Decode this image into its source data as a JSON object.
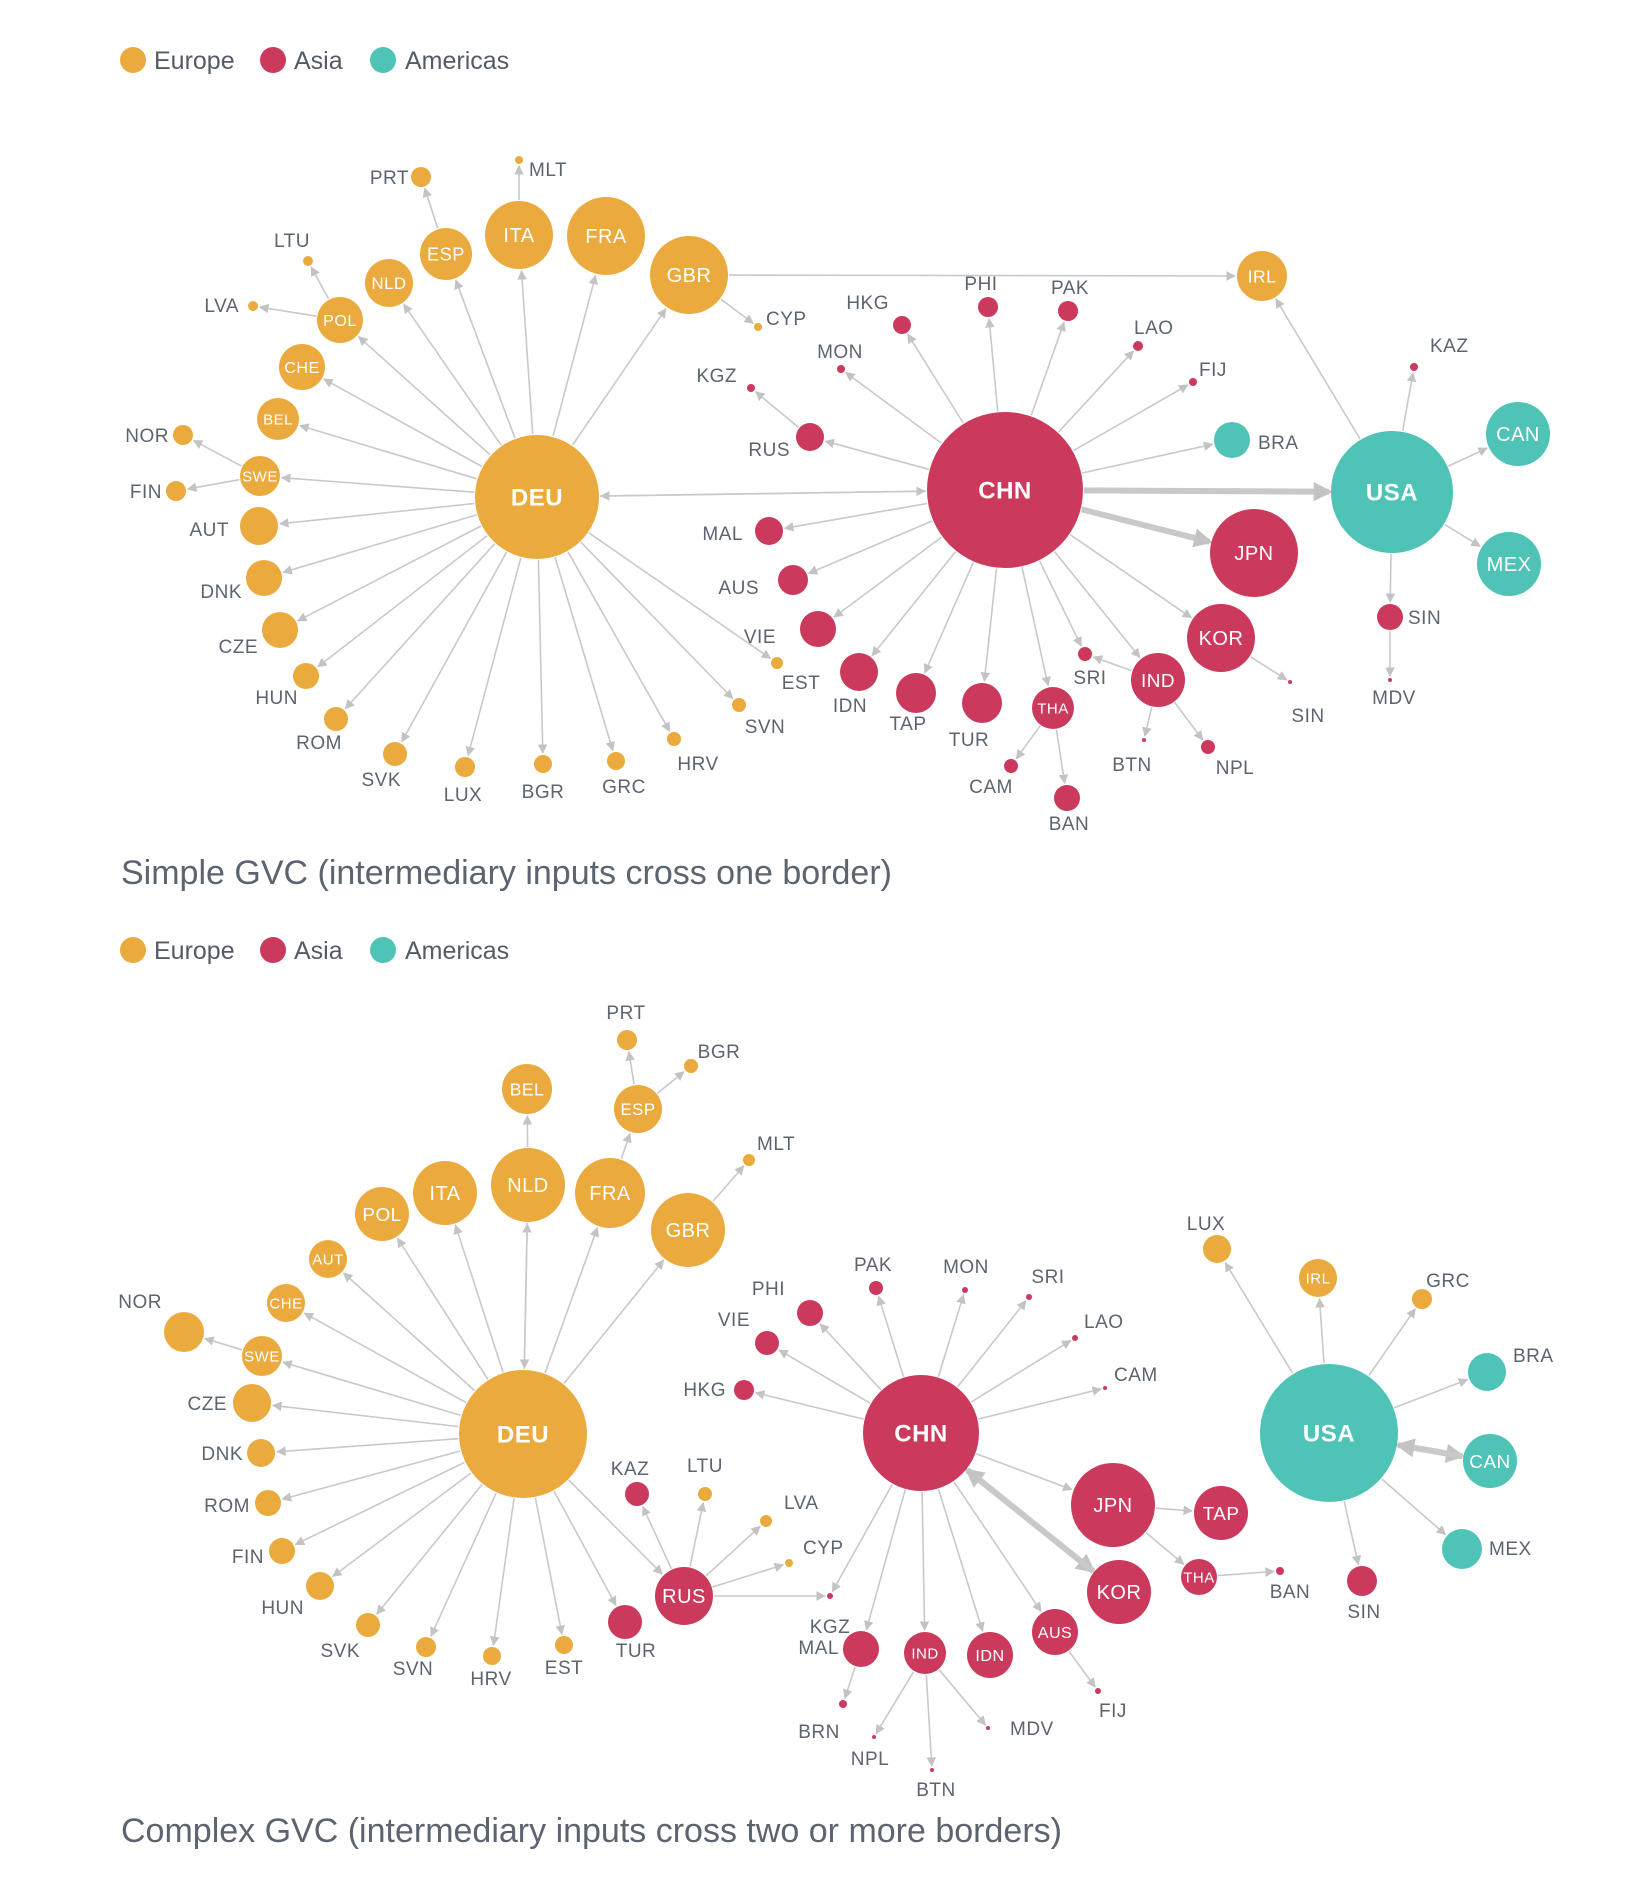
{
  "legend": [
    {
      "key": "europe",
      "label": "Europe",
      "color": "#EBAA3E"
    },
    {
      "key": "asia",
      "label": "Asia",
      "color": "#CB3A5C"
    },
    {
      "key": "americas",
      "label": "Americas",
      "color": "#4EC3B6"
    }
  ],
  "diagrams": [
    {
      "id": "simple",
      "caption": "Simple GVC (intermediary inputs cross one border)",
      "nodes": [
        {
          "id": "DEU",
          "region": "europe",
          "label": "DEU",
          "hub": true
        },
        {
          "id": "CHN",
          "region": "asia",
          "label": "CHN",
          "hub": true
        },
        {
          "id": "USA",
          "region": "americas",
          "label": "USA",
          "hub": true
        },
        {
          "id": "PRT",
          "region": "europe",
          "label": "PRT"
        },
        {
          "id": "MLT",
          "region": "europe",
          "label": "MLT"
        },
        {
          "id": "ITA",
          "region": "europe",
          "label": "ITA"
        },
        {
          "id": "FRA",
          "region": "europe",
          "label": "FRA"
        },
        {
          "id": "GBR",
          "region": "europe",
          "label": "GBR"
        },
        {
          "id": "ESP",
          "region": "europe",
          "label": "ESP"
        },
        {
          "id": "NLD",
          "region": "europe",
          "label": "NLD"
        },
        {
          "id": "LTU",
          "region": "europe",
          "label": "LTU"
        },
        {
          "id": "LVA",
          "region": "europe",
          "label": "LVA"
        },
        {
          "id": "POL",
          "region": "europe",
          "label": "POL"
        },
        {
          "id": "CHE",
          "region": "europe",
          "label": "CHE"
        },
        {
          "id": "BEL",
          "region": "europe",
          "label": "BEL"
        },
        {
          "id": "NOR",
          "region": "europe",
          "label": "NOR"
        },
        {
          "id": "SWE",
          "region": "europe",
          "label": "SWE"
        },
        {
          "id": "FIN",
          "region": "europe",
          "label": "FIN"
        },
        {
          "id": "AUT",
          "region": "europe",
          "label": "AUT"
        },
        {
          "id": "DNK",
          "region": "europe",
          "label": "DNK"
        },
        {
          "id": "CZE",
          "region": "europe",
          "label": "CZE"
        },
        {
          "id": "HUN",
          "region": "europe",
          "label": "HUN"
        },
        {
          "id": "ROM",
          "region": "europe",
          "label": "ROM"
        },
        {
          "id": "SVK",
          "region": "europe",
          "label": "SVK"
        },
        {
          "id": "LUX",
          "region": "europe",
          "label": "LUX"
        },
        {
          "id": "BGR",
          "region": "europe",
          "label": "BGR"
        },
        {
          "id": "GRC",
          "region": "europe",
          "label": "GRC"
        },
        {
          "id": "HRV",
          "region": "europe",
          "label": "HRV"
        },
        {
          "id": "SVN",
          "region": "europe",
          "label": "SVN"
        },
        {
          "id": "EST",
          "region": "europe",
          "label": "EST"
        },
        {
          "id": "CYP",
          "region": "europe",
          "label": "CYP"
        },
        {
          "id": "IRL",
          "region": "europe",
          "label": "IRL"
        },
        {
          "id": "HKG",
          "region": "asia",
          "label": "HKG"
        },
        {
          "id": "PHI",
          "region": "asia",
          "label": "PHI"
        },
        {
          "id": "PAK",
          "region": "asia",
          "label": "PAK"
        },
        {
          "id": "LAO",
          "region": "asia",
          "label": "LAO"
        },
        {
          "id": "FIJ",
          "region": "asia",
          "label": "FIJ"
        },
        {
          "id": "BRA",
          "region": "americas",
          "label": "BRA"
        },
        {
          "id": "MON",
          "region": "asia",
          "label": "MON"
        },
        {
          "id": "KGZ",
          "region": "asia",
          "label": "KGZ"
        },
        {
          "id": "RUS",
          "region": "asia",
          "label": "RUS"
        },
        {
          "id": "MAL",
          "region": "asia",
          "label": "MAL"
        },
        {
          "id": "AUS",
          "region": "asia",
          "label": "AUS"
        },
        {
          "id": "VIE",
          "region": "asia",
          "label": "VIE"
        },
        {
          "id": "IDN",
          "region": "asia",
          "label": "IDN"
        },
        {
          "id": "TAP",
          "region": "asia",
          "label": "TAP"
        },
        {
          "id": "TUR",
          "region": "asia",
          "label": "TUR"
        },
        {
          "id": "THA",
          "region": "asia",
          "label": "THA"
        },
        {
          "id": "CAM",
          "region": "asia",
          "label": "CAM"
        },
        {
          "id": "BAN",
          "region": "asia",
          "label": "BAN"
        },
        {
          "id": "SRI",
          "region": "asia",
          "label": "SRI"
        },
        {
          "id": "IND",
          "region": "asia",
          "label": "IND"
        },
        {
          "id": "BTN",
          "region": "asia",
          "label": "BTN"
        },
        {
          "id": "NPL",
          "region": "asia",
          "label": "NPL"
        },
        {
          "id": "KOR",
          "region": "asia",
          "label": "KOR"
        },
        {
          "id": "SIN_A",
          "region": "asia",
          "label": "SIN"
        },
        {
          "id": "JPN",
          "region": "asia",
          "label": "JPN"
        },
        {
          "id": "KAZ",
          "region": "asia",
          "label": "KAZ"
        },
        {
          "id": "CAN",
          "region": "americas",
          "label": "CAN"
        },
        {
          "id": "MEX",
          "region": "americas",
          "label": "MEX"
        },
        {
          "id": "SIN",
          "region": "asia",
          "label": "SIN"
        },
        {
          "id": "MDV",
          "region": "asia",
          "label": "MDV"
        }
      ],
      "edges": [
        [
          "DEU",
          "ITA"
        ],
        [
          "DEU",
          "FRA"
        ],
        [
          "DEU",
          "GBR"
        ],
        [
          "DEU",
          "ESP"
        ],
        [
          "DEU",
          "NLD"
        ],
        [
          "DEU",
          "POL"
        ],
        [
          "DEU",
          "CHE"
        ],
        [
          "DEU",
          "BEL"
        ],
        [
          "DEU",
          "SWE"
        ],
        [
          "DEU",
          "AUT"
        ],
        [
          "DEU",
          "DNK"
        ],
        [
          "DEU",
          "CZE"
        ],
        [
          "DEU",
          "HUN"
        ],
        [
          "DEU",
          "ROM"
        ],
        [
          "DEU",
          "SVK"
        ],
        [
          "DEU",
          "LUX"
        ],
        [
          "DEU",
          "BGR"
        ],
        [
          "DEU",
          "GRC"
        ],
        [
          "DEU",
          "HRV"
        ],
        [
          "DEU",
          "SVN"
        ],
        [
          "DEU",
          "EST"
        ],
        [
          "ESP",
          "PRT"
        ],
        [
          "ITA",
          "MLT"
        ],
        [
          "POL",
          "LTU"
        ],
        [
          "POL",
          "LVA"
        ],
        [
          "SWE",
          "NOR"
        ],
        [
          "SWE",
          "FIN"
        ],
        [
          "GBR",
          "CYP"
        ],
        [
          "GBR",
          "IRL"
        ],
        [
          "CHN",
          "DEU"
        ],
        [
          "DEU",
          "CHN"
        ],
        [
          "CHN",
          "HKG"
        ],
        [
          "CHN",
          "PHI"
        ],
        [
          "CHN",
          "PAK"
        ],
        [
          "CHN",
          "LAO"
        ],
        [
          "CHN",
          "FIJ"
        ],
        [
          "CHN",
          "BRA"
        ],
        [
          "CHN",
          "MON"
        ],
        [
          "CHN",
          "RUS"
        ],
        [
          "RUS",
          "KGZ"
        ],
        [
          "CHN",
          "MAL"
        ],
        [
          "CHN",
          "AUS"
        ],
        [
          "CHN",
          "VIE"
        ],
        [
          "CHN",
          "IDN"
        ],
        [
          "CHN",
          "TAP"
        ],
        [
          "CHN",
          "TUR"
        ],
        [
          "CHN",
          "THA"
        ],
        [
          "THA",
          "CAM"
        ],
        [
          "THA",
          "BAN"
        ],
        [
          "CHN",
          "SRI"
        ],
        [
          "IND",
          "SRI"
        ],
        [
          "CHN",
          "IND"
        ],
        [
          "IND",
          "BTN"
        ],
        [
          "IND",
          "NPL"
        ],
        [
          "CHN",
          "KOR"
        ],
        [
          "KOR",
          "SIN_A"
        ],
        [
          "CHN",
          "JPN",
          "major"
        ],
        [
          "CHN",
          "USA",
          "major"
        ],
        [
          "USA",
          "IRL"
        ],
        [
          "USA",
          "KAZ"
        ],
        [
          "USA",
          "CAN"
        ],
        [
          "USA",
          "MEX"
        ],
        [
          "USA",
          "SIN"
        ],
        [
          "SIN",
          "MDV"
        ]
      ]
    },
    {
      "id": "complex",
      "caption": "Complex GVC (intermediary inputs cross two or more borders)",
      "nodes": [
        {
          "id": "DEU",
          "region": "europe",
          "label": "DEU",
          "hub": true
        },
        {
          "id": "CHN",
          "region": "asia",
          "label": "CHN",
          "hub": true
        },
        {
          "id": "USA",
          "region": "americas",
          "label": "USA",
          "hub": true
        },
        {
          "id": "PRT",
          "region": "europe",
          "label": "PRT"
        },
        {
          "id": "BGR",
          "region": "europe",
          "label": "BGR"
        },
        {
          "id": "ESP",
          "region": "europe",
          "label": "ESP"
        },
        {
          "id": "BEL",
          "region": "europe",
          "label": "BEL"
        },
        {
          "id": "MLT",
          "region": "europe",
          "label": "MLT"
        },
        {
          "id": "ITA",
          "region": "europe",
          "label": "ITA"
        },
        {
          "id": "NLD",
          "region": "europe",
          "label": "NLD"
        },
        {
          "id": "FRA",
          "region": "europe",
          "label": "FRA"
        },
        {
          "id": "GBR",
          "region": "europe",
          "label": "GBR"
        },
        {
          "id": "POL",
          "region": "europe",
          "label": "POL"
        },
        {
          "id": "AUT",
          "region": "europe",
          "label": "AUT"
        },
        {
          "id": "CHE",
          "region": "europe",
          "label": "CHE"
        },
        {
          "id": "NOR",
          "region": "europe",
          "label": "NOR"
        },
        {
          "id": "SWE",
          "region": "europe",
          "label": "SWE"
        },
        {
          "id": "CZE",
          "region": "europe",
          "label": "CZE"
        },
        {
          "id": "DNK",
          "region": "europe",
          "label": "DNK"
        },
        {
          "id": "ROM",
          "region": "europe",
          "label": "ROM"
        },
        {
          "id": "FIN",
          "region": "europe",
          "label": "FIN"
        },
        {
          "id": "HUN",
          "region": "europe",
          "label": "HUN"
        },
        {
          "id": "SVK",
          "region": "europe",
          "label": "SVK"
        },
        {
          "id": "SVN",
          "region": "europe",
          "label": "SVN"
        },
        {
          "id": "HRV",
          "region": "europe",
          "label": "HRV"
        },
        {
          "id": "EST",
          "region": "europe",
          "label": "EST"
        },
        {
          "id": "TUR",
          "region": "asia",
          "label": "TUR"
        },
        {
          "id": "KAZ",
          "region": "asia",
          "label": "KAZ"
        },
        {
          "id": "LTU",
          "region": "europe",
          "label": "LTU"
        },
        {
          "id": "LVA",
          "region": "europe",
          "label": "LVA"
        },
        {
          "id": "CYP",
          "region": "europe",
          "label": "CYP"
        },
        {
          "id": "RUS",
          "region": "asia",
          "label": "RUS"
        },
        {
          "id": "KGZ",
          "region": "asia",
          "label": "KGZ"
        },
        {
          "id": "PAK",
          "region": "asia",
          "label": "PAK"
        },
        {
          "id": "MON",
          "region": "asia",
          "label": "MON"
        },
        {
          "id": "PHI",
          "region": "asia",
          "label": "PHI"
        },
        {
          "id": "SRI",
          "region": "asia",
          "label": "SRI"
        },
        {
          "id": "VIE",
          "region": "asia",
          "label": "VIE"
        },
        {
          "id": "LAO",
          "region": "asia",
          "label": "LAO"
        },
        {
          "id": "HKG",
          "region": "asia",
          "label": "HKG"
        },
        {
          "id": "CAM",
          "region": "asia",
          "label": "CAM"
        },
        {
          "id": "JPN",
          "region": "asia",
          "label": "JPN"
        },
        {
          "id": "TAP",
          "region": "asia",
          "label": "TAP"
        },
        {
          "id": "THA",
          "region": "asia",
          "label": "THA"
        },
        {
          "id": "BAN",
          "region": "asia",
          "label": "BAN"
        },
        {
          "id": "KOR",
          "region": "asia",
          "label": "KOR"
        },
        {
          "id": "MAL",
          "region": "asia",
          "label": "MAL"
        },
        {
          "id": "BRN",
          "region": "asia",
          "label": "BRN"
        },
        {
          "id": "IND",
          "region": "asia",
          "label": "IND"
        },
        {
          "id": "NPL",
          "region": "asia",
          "label": "NPL"
        },
        {
          "id": "BTN",
          "region": "asia",
          "label": "BTN"
        },
        {
          "id": "IDN",
          "region": "asia",
          "label": "IDN"
        },
        {
          "id": "MDV",
          "region": "asia",
          "label": "MDV"
        },
        {
          "id": "AUS",
          "region": "asia",
          "label": "AUS"
        },
        {
          "id": "FIJ",
          "region": "asia",
          "label": "FIJ"
        },
        {
          "id": "LUX",
          "region": "europe",
          "label": "LUX"
        },
        {
          "id": "IRL",
          "region": "europe",
          "label": "IRL"
        },
        {
          "id": "GRC",
          "region": "europe",
          "label": "GRC"
        },
        {
          "id": "BRA",
          "region": "americas",
          "label": "BRA"
        },
        {
          "id": "CAN",
          "region": "americas",
          "label": "CAN"
        },
        {
          "id": "MEX",
          "region": "americas",
          "label": "MEX"
        },
        {
          "id": "SIN",
          "region": "asia",
          "label": "SIN"
        }
      ],
      "edges": [
        [
          "DEU",
          "NLD"
        ],
        [
          "NLD",
          "DEU"
        ],
        [
          "NLD",
          "BEL"
        ],
        [
          "DEU",
          "FRA"
        ],
        [
          "FRA",
          "ESP"
        ],
        [
          "ESP",
          "PRT"
        ],
        [
          "ESP",
          "BGR"
        ],
        [
          "DEU",
          "GBR"
        ],
        [
          "GBR",
          "MLT"
        ],
        [
          "DEU",
          "ITA"
        ],
        [
          "DEU",
          "POL"
        ],
        [
          "DEU",
          "AUT"
        ],
        [
          "DEU",
          "CHE"
        ],
        [
          "DEU",
          "SWE"
        ],
        [
          "SWE",
          "NOR"
        ],
        [
          "DEU",
          "CZE"
        ],
        [
          "DEU",
          "DNK"
        ],
        [
          "DEU",
          "ROM"
        ],
        [
          "DEU",
          "FIN"
        ],
        [
          "DEU",
          "HUN"
        ],
        [
          "DEU",
          "SVK"
        ],
        [
          "DEU",
          "SVN"
        ],
        [
          "DEU",
          "HRV"
        ],
        [
          "DEU",
          "EST"
        ],
        [
          "DEU",
          "TUR"
        ],
        [
          "DEU",
          "RUS"
        ],
        [
          "RUS",
          "KAZ"
        ],
        [
          "RUS",
          "LTU"
        ],
        [
          "RUS",
          "LVA"
        ],
        [
          "RUS",
          "CYP"
        ],
        [
          "RUS",
          "KGZ"
        ],
        [
          "CHN",
          "PAK"
        ],
        [
          "CHN",
          "MON"
        ],
        [
          "CHN",
          "PHI"
        ],
        [
          "CHN",
          "SRI"
        ],
        [
          "CHN",
          "VIE"
        ],
        [
          "CHN",
          "LAO"
        ],
        [
          "CHN",
          "HKG"
        ],
        [
          "CHN",
          "CAM"
        ],
        [
          "CHN",
          "JPN"
        ],
        [
          "JPN",
          "TAP"
        ],
        [
          "JPN",
          "THA"
        ],
        [
          "THA",
          "BAN"
        ],
        [
          "CHN",
          "KOR",
          "major"
        ],
        [
          "KOR",
          "CHN",
          "major"
        ],
        [
          "CHN",
          "MAL"
        ],
        [
          "MAL",
          "BRN"
        ],
        [
          "CHN",
          "IND"
        ],
        [
          "IND",
          "NPL"
        ],
        [
          "IND",
          "BTN"
        ],
        [
          "IND",
          "MDV"
        ],
        [
          "CHN",
          "IDN"
        ],
        [
          "CHN",
          "AUS"
        ],
        [
          "AUS",
          "FIJ"
        ],
        [
          "CHN",
          "KGZ"
        ],
        [
          "USA",
          "LUX"
        ],
        [
          "USA",
          "IRL"
        ],
        [
          "USA",
          "GRC"
        ],
        [
          "USA",
          "BRA"
        ],
        [
          "USA",
          "CAN",
          "major"
        ],
        [
          "CAN",
          "USA",
          "major"
        ],
        [
          "USA",
          "MEX"
        ],
        [
          "USA",
          "SIN"
        ]
      ]
    }
  ]
}
